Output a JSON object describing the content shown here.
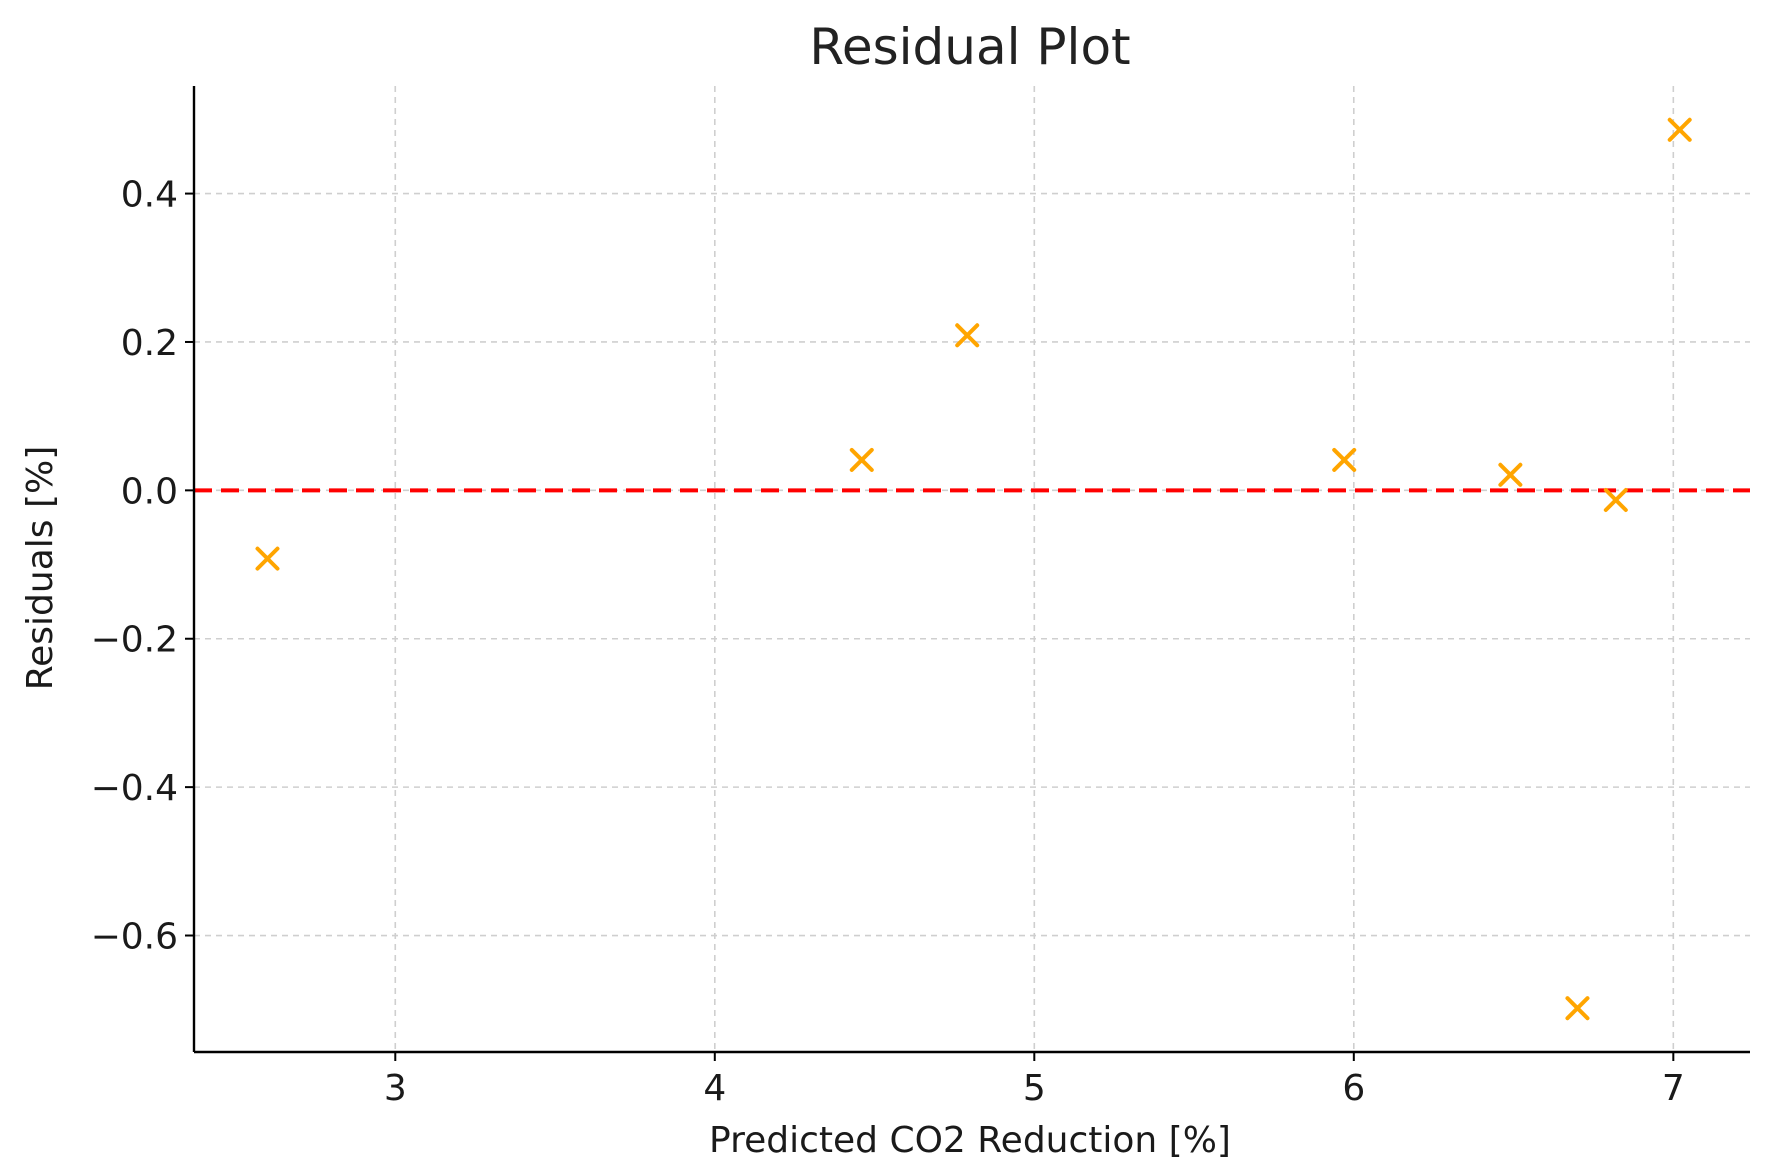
{
  "chart_data": {
    "type": "scatter",
    "title": "Residual Plot",
    "xlabel": "Predicted CO2 Reduction [%]",
    "ylabel": "Residuals [%]",
    "xlim": [
      2.37,
      7.24
    ],
    "ylim": [
      -0.757,
      0.545
    ],
    "xticks": [
      3,
      4,
      5,
      6,
      7
    ],
    "xtick_labels": [
      "3",
      "4",
      "5",
      "6",
      "7"
    ],
    "yticks": [
      0.4,
      0.2,
      0.0,
      -0.2,
      -0.4,
      -0.6
    ],
    "ytick_labels": [
      "0.4",
      "0.2",
      "0.0",
      "−0.2",
      "−0.4",
      "−0.6"
    ],
    "grid": true,
    "marker": "x",
    "marker_color": "#FFA500",
    "reference_line": {
      "y": 0,
      "style": "dashed",
      "color": "#FF0000"
    },
    "series": [
      {
        "x": [
          2.6,
          4.46,
          4.79,
          5.97,
          6.49,
          6.7,
          6.82,
          7.02
        ],
        "y": [
          -0.092,
          0.041,
          0.209,
          0.041,
          0.021,
          -0.698,
          -0.013,
          0.486
        ]
      }
    ]
  }
}
